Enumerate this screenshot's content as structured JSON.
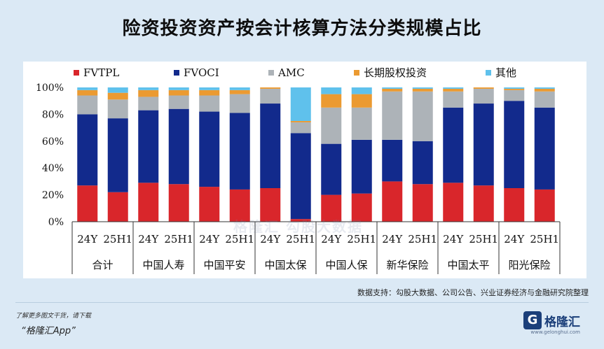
{
  "title": "险资投资资产按会计核算方法分类规模占比",
  "source_note": "数据支持：勾股大数据、公司公告、兴业证券经济与金融研究院整理",
  "promo": {
    "line1": "了解更多图文干货，请下载",
    "line2": "“格隆汇App”"
  },
  "brand": {
    "name": "格隆汇",
    "url": "www.gelonghui.com",
    "mark": "G"
  },
  "watermark": "格隆汇  勾股大数据",
  "chart_data": {
    "type": "bar",
    "stacked": true,
    "ylim": [
      0,
      100
    ],
    "ytick_labels": [
      "0%",
      "20%",
      "40%",
      "60%",
      "80%",
      "100%"
    ],
    "groups": [
      "合计",
      "中国人寿",
      "中国平安",
      "中国太保",
      "中国人保",
      "新华保险",
      "中国太平",
      "阳光保险"
    ],
    "periods": [
      "24Y",
      "25H1"
    ],
    "categories": [
      "24Y",
      "25H1",
      "24Y",
      "25H1",
      "24Y",
      "25H1",
      "24Y",
      "25H1",
      "24Y",
      "25H1",
      "24Y",
      "25H1",
      "24Y",
      "25H1",
      "24Y",
      "25H1"
    ],
    "legend_position": "top",
    "series": [
      {
        "name": "FVTPL",
        "color": "#d9262b",
        "values": [
          27,
          22,
          29,
          28,
          26,
          24,
          25,
          2,
          20,
          21,
          30,
          28,
          29,
          27,
          25,
          24
        ]
      },
      {
        "name": "FVOCI",
        "color": "#122a8c",
        "values": [
          53,
          55,
          54,
          56,
          56,
          57,
          63,
          64,
          38,
          40,
          31,
          32,
          56,
          61,
          65,
          61
        ]
      },
      {
        "name": "AMC",
        "color": "#adb3b8",
        "values": [
          14,
          14,
          10,
          10,
          12,
          14,
          11,
          8,
          27,
          24,
          36,
          37,
          12,
          11,
          8,
          12
        ]
      },
      {
        "name": "长期股权投资",
        "color": "#eb9a31",
        "values": [
          4,
          5,
          5,
          4,
          4,
          3,
          1,
          1,
          10,
          10,
          2,
          2,
          2,
          1,
          1,
          2
        ]
      },
      {
        "name": "其他",
        "color": "#5fc1ec",
        "values": [
          2,
          4,
          2,
          2,
          2,
          2,
          0,
          25,
          5,
          5,
          1,
          1,
          1,
          0,
          1,
          1
        ]
      }
    ]
  }
}
